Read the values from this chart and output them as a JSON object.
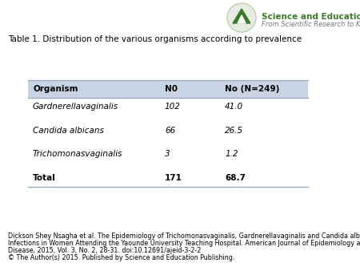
{
  "title": "Table 1. Distribution of the various organisms according to prevalence",
  "title_fontsize": 7.5,
  "header": [
    "Organism",
    "N0",
    "No (N=249)"
  ],
  "rows": [
    [
      "Gardnerellavaginalis",
      "102",
      "41.0"
    ],
    [
      "Candida albicans",
      "66",
      "26.5"
    ],
    [
      "Trichomonasvaginalis",
      "3",
      "1.2"
    ],
    [
      "Total",
      "171",
      "68.7"
    ]
  ],
  "italic_rows": [
    0,
    1,
    2
  ],
  "bold_rows": [
    3
  ],
  "header_bg": "#c8d4e3",
  "row_bg": "#ffffff",
  "footer_text1": "Dickson Shey Nsagha et al. The Epidemiology of Trichomonasvaginalis, Gardnerellavaginalis and Candida albicans Co-",
  "footer_text2": "Infections in Women Attending the Yaounde University Teaching Hospital. American Journal of Epidemiology and Infectious",
  "footer_text3": "Disease, 2015, Vol. 3, No. 2, 28-31. doi:10.12691/ajeid-3-2-2",
  "footer_text4": "© The Author(s) 2015. Published by Science and Education Publishing.",
  "footer_fontsize": 5.8,
  "logo_text_line1": "Science and Education Publishing",
  "logo_text_line2": "From Scientific Research to Knowledge",
  "logo_color": "#3a7a2a",
  "logo_subtitle_color": "#777777",
  "border_color": "#9aabbf",
  "background_color": "#ffffff",
  "fig_width": 4.5,
  "fig_height": 3.38,
  "dpi": 100
}
